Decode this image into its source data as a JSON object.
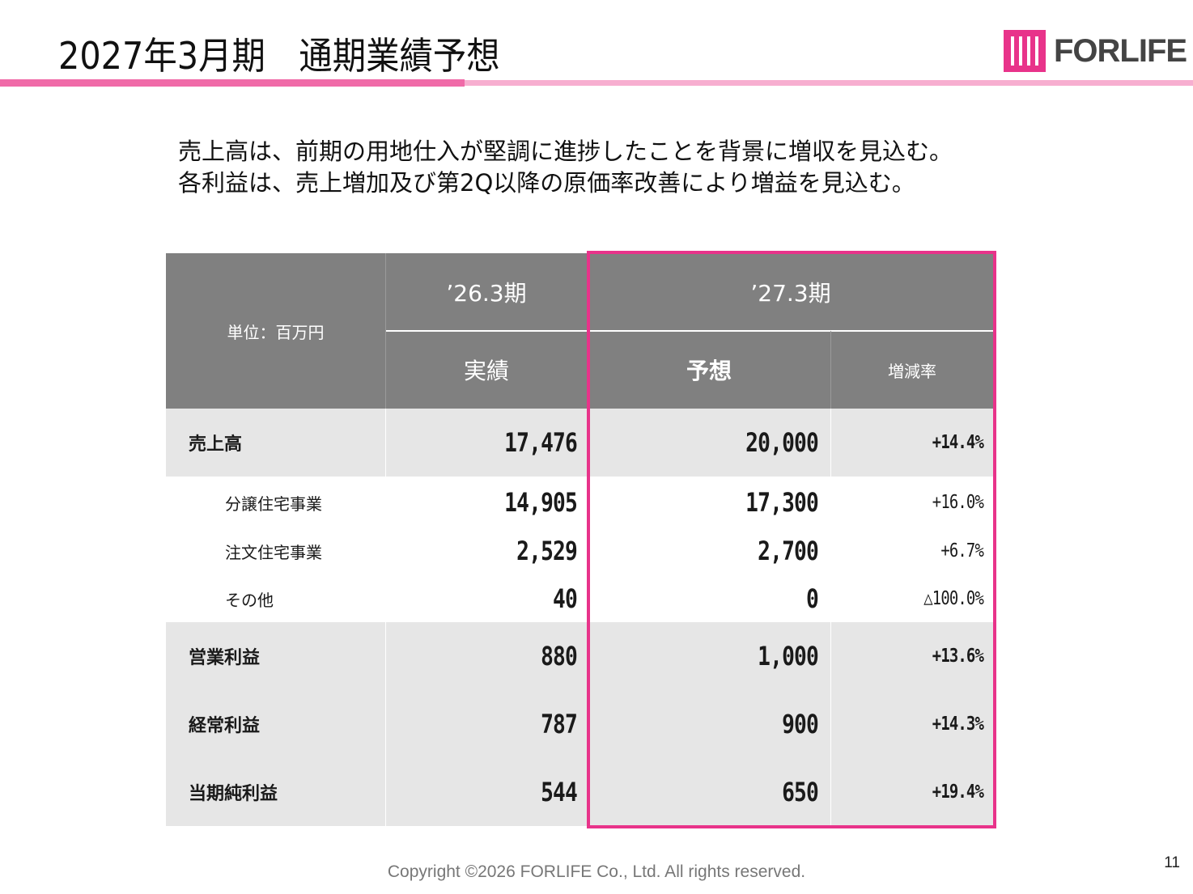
{
  "title": "2027年3月期　通期業績予想",
  "logo": {
    "text": "FORLIFE",
    "brand_color": "#e8338a"
  },
  "lead": [
    "売上高は、前期の用地仕入が堅調に進捗したことを背景に増収を見込む。",
    "各利益は、売上増加及び第2Q以降の原価率改善により増益を見込む。"
  ],
  "table": {
    "unit": "単位：百万円",
    "period_prev": "’26.3期",
    "period_next": "’27.3期",
    "col_actual": "実績",
    "col_forecast": "予想",
    "col_change": "増減率",
    "rows": [
      {
        "label": "売上高",
        "actual": "17,476",
        "forecast": "20,000",
        "change": "+14.4%"
      },
      {
        "label": "分譲住宅事業",
        "actual": "14,905",
        "forecast": "17,300",
        "change": "+16.0%"
      },
      {
        "label": "注文住宅事業",
        "actual": "2,529",
        "forecast": "2,700",
        "change": "+6.7%"
      },
      {
        "label": "その他",
        "actual": "40",
        "forecast": "0",
        "change": "△100.0%"
      },
      {
        "label": "営業利益",
        "actual": "880",
        "forecast": "1,000",
        "change": "+13.6%"
      },
      {
        "label": "経常利益",
        "actual": "787",
        "forecast": "900",
        "change": "+14.3%"
      },
      {
        "label": "当期純利益",
        "actual": "544",
        "forecast": "650",
        "change": "+19.4%"
      }
    ]
  },
  "footer": "Copyright ©2026 FORLIFE Co., Ltd. All rights reserved.",
  "page_number": "11"
}
